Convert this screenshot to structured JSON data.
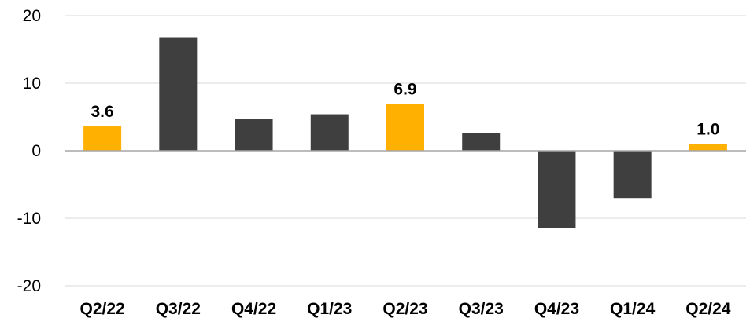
{
  "chart_data": {
    "type": "bar",
    "categories": [
      "Q2/22",
      "Q3/22",
      "Q4/22",
      "Q1/23",
      "Q2/23",
      "Q3/23",
      "Q4/23",
      "Q1/24",
      "Q2/24"
    ],
    "values": [
      3.6,
      16.8,
      4.7,
      5.4,
      6.9,
      2.6,
      -11.5,
      -7.0,
      1.0
    ],
    "data_labels": [
      "3.6",
      "",
      "",
      "",
      "6.9",
      "",
      "",
      "",
      "1.0"
    ],
    "highlighted": [
      true,
      false,
      false,
      false,
      true,
      false,
      false,
      false,
      true
    ],
    "colors": {
      "highlight": "#FFB000",
      "default": "#3F3F3F",
      "grid": "#D9D9D9",
      "zero_line": "#A6A6A6"
    },
    "yticks": [
      20,
      10,
      0,
      -10,
      -20
    ],
    "ylim": [
      -20,
      20
    ],
    "grid": true,
    "legend": "none",
    "title": "",
    "xlabel": "",
    "ylabel": ""
  }
}
